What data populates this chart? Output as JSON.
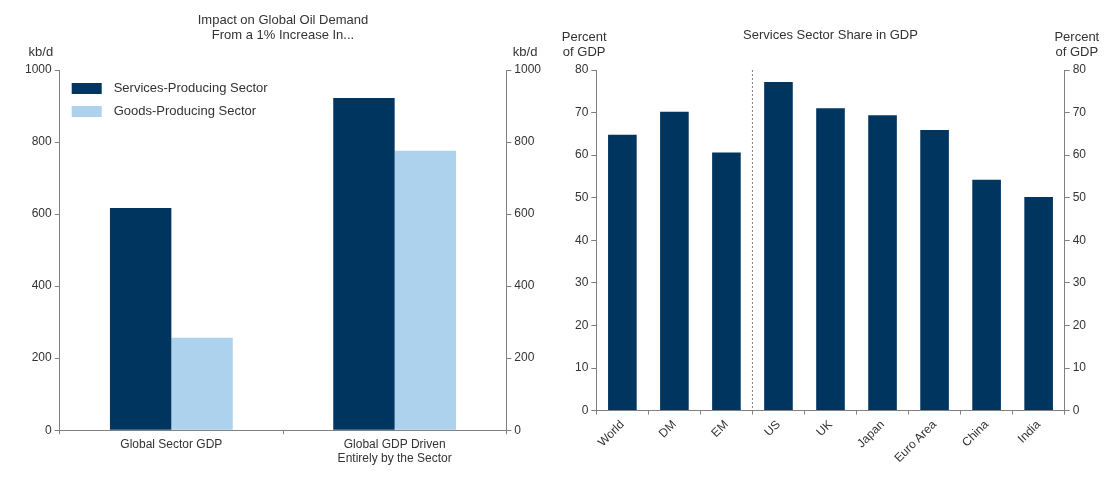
{
  "chart_data": [
    {
      "type": "bar",
      "title": "Impact on Global Oil Demand From a 1% Increase In...",
      "ylabel": "kb/d",
      "y2label": "kb/d",
      "categories": [
        "Global Sector GDP",
        "Global GDP Driven Entirely by the Sector"
      ],
      "series": [
        {
          "name": "Services-Producing Sector",
          "color": "#003560",
          "values": [
            617,
            922
          ]
        },
        {
          "name": "Goods-Producing Sector",
          "color": "#acd2ee",
          "values": [
            257,
            776
          ]
        }
      ],
      "ylim": [
        0,
        1000
      ],
      "yticks": [
        0,
        200,
        400,
        600,
        800,
        1000
      ],
      "y2lim": [
        0,
        1000
      ],
      "y2ticks": [
        0,
        200,
        400,
        600,
        800,
        1000
      ],
      "grid": false,
      "legend": "top left"
    },
    {
      "type": "bar",
      "title": "Services Sector Share in GDP",
      "ylabel": "Percent of GDP",
      "y2label": "Percent of GDP",
      "categories": [
        "World",
        "DM",
        "EM",
        "US",
        "UK",
        "Japan",
        "Euro Area",
        "China",
        "India"
      ],
      "series": [
        {
          "color": "#003560",
          "values": [
            64.8,
            70.2,
            60.6,
            77.2,
            71.0,
            69.4,
            65.9,
            54.2,
            50.2
          ]
        }
      ],
      "ylim": [
        0,
        80
      ],
      "yticks": [
        0,
        10,
        20,
        30,
        40,
        50,
        60,
        70,
        80
      ],
      "y2lim": [
        0,
        80
      ],
      "y2ticks": [
        0,
        10,
        20,
        30,
        40,
        50,
        60,
        70,
        80
      ],
      "grid": false,
      "legend": false
    }
  ]
}
